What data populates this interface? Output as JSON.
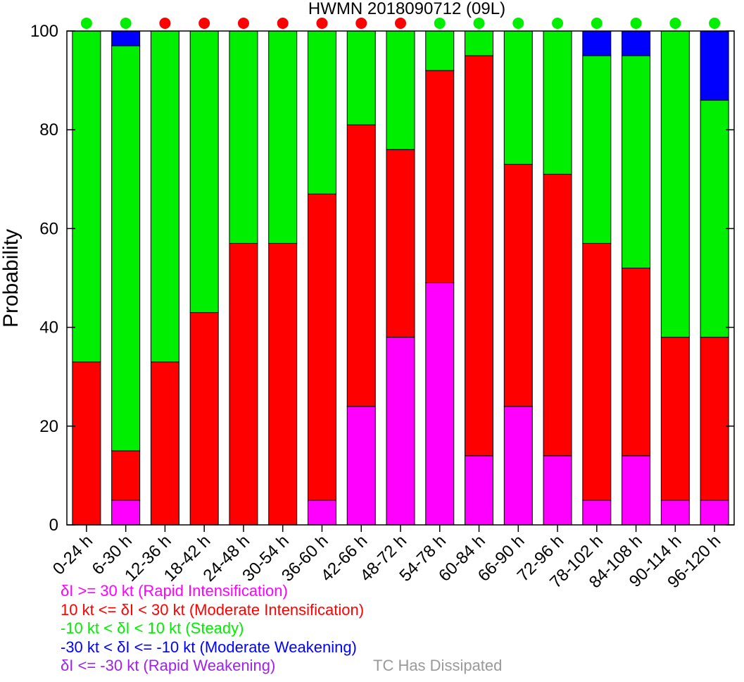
{
  "chart_data": {
    "type": "bar",
    "stacked": true,
    "title": "HWMN 2018090712  (09L)",
    "ylabel": "Probability",
    "xlabel": "",
    "ylim": [
      0,
      100
    ],
    "yticks": [
      0,
      20,
      40,
      60,
      80,
      100
    ],
    "grid": false,
    "categories": [
      "0-24 h",
      "6-30 h",
      "12-36 h",
      "18-42 h",
      "24-48 h",
      "30-54 h",
      "36-60 h",
      "42-66 h",
      "48-72 h",
      "54-78 h",
      "60-84 h",
      "66-90 h",
      "72-96 h",
      "78-102 h",
      "84-108 h",
      "90-114 h",
      "96-120 h"
    ],
    "series": [
      {
        "name": "δI >= 30 kt (Rapid Intensification)",
        "color": "#ff00ff",
        "values": [
          0,
          5,
          0,
          0,
          0,
          0,
          5,
          24,
          38,
          49,
          14,
          24,
          14,
          5,
          14,
          5,
          5
        ]
      },
      {
        "name": "10 kt <= δI < 30 kt (Moderate Intensification)",
        "color": "#ff0000",
        "values": [
          33,
          10,
          33,
          43,
          57,
          57,
          62,
          57,
          38,
          43,
          81,
          49,
          57,
          52,
          38,
          33,
          33
        ]
      },
      {
        "name": "-10 kt < δI < 10 kt (Steady)",
        "color": "#00ee00",
        "values": [
          67,
          82,
          67,
          57,
          43,
          43,
          33,
          19,
          24,
          8,
          5,
          27,
          29,
          38,
          43,
          62,
          48
        ]
      },
      {
        "name": "-30 kt < δI <= -10 kt (Moderate Weakening)",
        "color": "#0000ff",
        "values": [
          0,
          3,
          0,
          0,
          0,
          0,
          0,
          0,
          0,
          0,
          0,
          0,
          0,
          5,
          5,
          0,
          14
        ]
      },
      {
        "name": "δI <= -30 kt (Rapid Weakening)",
        "color": "#a020f0",
        "values": [
          0,
          0,
          0,
          0,
          0,
          0,
          0,
          0,
          0,
          0,
          0,
          0,
          0,
          0,
          0,
          0,
          0
        ]
      }
    ],
    "top_dots": {
      "colors": [
        "#00ee00",
        "#00ee00",
        "#ff0000",
        "#ff0000",
        "#ff0000",
        "#ff0000",
        "#ff0000",
        "#ff0000",
        "#ff0000",
        "#00ee00",
        "#00ee00",
        "#00ee00",
        "#00ee00",
        "#00ee00",
        "#00ee00",
        "#00ee00",
        "#00ee00"
      ]
    },
    "extra_legend": {
      "label": "TC Has Dissipated",
      "color": "#999999"
    }
  }
}
